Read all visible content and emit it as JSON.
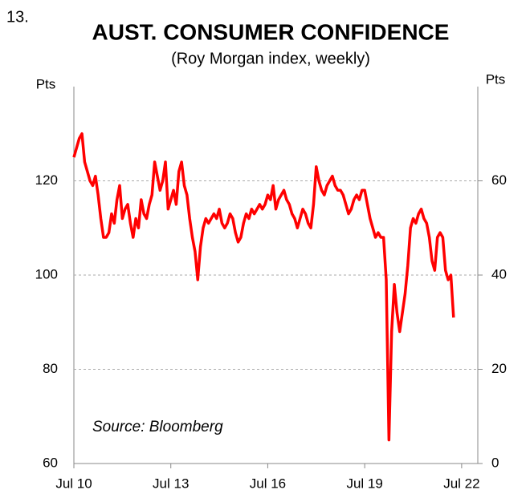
{
  "chart_data": {
    "type": "line",
    "figure_number": "13.",
    "title": "AUST. CONSUMER CONFIDENCE",
    "subtitle": "(Roy Morgan index, weekly)",
    "y_label": "Pts",
    "y2_label": "Pts",
    "annotation": "Source: Bloomberg",
    "color": "#ff0000",
    "grid": true,
    "xlim": [
      "2010-07",
      "2023-01"
    ],
    "xticks": [
      {
        "value": "2010-07",
        "label": "Jul 10"
      },
      {
        "value": "2013-07",
        "label": "Jul 13"
      },
      {
        "value": "2016-07",
        "label": "Jul 16"
      },
      {
        "value": "2019-07",
        "label": "Jul 19"
      },
      {
        "value": "2022-07",
        "label": "Jul 22"
      }
    ],
    "ylim": [
      60,
      140
    ],
    "yticks": [
      60,
      80,
      100,
      120
    ],
    "y2lim": [
      0,
      80
    ],
    "y2ticks": [
      0,
      20,
      40,
      60
    ],
    "x": [
      "2010-07",
      "2010-08",
      "2010-09",
      "2010-10",
      "2010-11",
      "2010-12",
      "2011-01",
      "2011-02",
      "2011-03",
      "2011-04",
      "2011-05",
      "2011-06",
      "2011-07",
      "2011-08",
      "2011-09",
      "2011-10",
      "2011-11",
      "2011-12",
      "2012-01",
      "2012-02",
      "2012-03",
      "2012-04",
      "2012-05",
      "2012-06",
      "2012-07",
      "2012-08",
      "2012-09",
      "2012-10",
      "2012-11",
      "2012-12",
      "2013-01",
      "2013-02",
      "2013-03",
      "2013-04",
      "2013-05",
      "2013-06",
      "2013-07",
      "2013-08",
      "2013-09",
      "2013-10",
      "2013-11",
      "2013-12",
      "2014-01",
      "2014-02",
      "2014-03",
      "2014-04",
      "2014-05",
      "2014-06",
      "2014-07",
      "2014-08",
      "2014-09",
      "2014-10",
      "2014-11",
      "2014-12",
      "2015-01",
      "2015-02",
      "2015-03",
      "2015-04",
      "2015-05",
      "2015-06",
      "2015-07",
      "2015-08",
      "2015-09",
      "2015-10",
      "2015-11",
      "2015-12",
      "2016-01",
      "2016-02",
      "2016-03",
      "2016-04",
      "2016-05",
      "2016-06",
      "2016-07",
      "2016-08",
      "2016-09",
      "2016-10",
      "2016-11",
      "2016-12",
      "2017-01",
      "2017-02",
      "2017-03",
      "2017-04",
      "2017-05",
      "2017-06",
      "2017-07",
      "2017-08",
      "2017-09",
      "2017-10",
      "2017-11",
      "2017-12",
      "2018-01",
      "2018-02",
      "2018-03",
      "2018-04",
      "2018-05",
      "2018-06",
      "2018-07",
      "2018-08",
      "2018-09",
      "2018-10",
      "2018-11",
      "2018-12",
      "2019-01",
      "2019-02",
      "2019-03",
      "2019-04",
      "2019-05",
      "2019-06",
      "2019-07",
      "2019-08",
      "2019-09",
      "2019-10",
      "2019-11",
      "2019-12",
      "2020-01",
      "2020-02",
      "2020-03",
      "2020-04",
      "2020-05",
      "2020-06",
      "2020-07",
      "2020-08",
      "2020-09",
      "2020-10",
      "2020-11",
      "2020-12",
      "2021-01",
      "2021-02",
      "2021-03",
      "2021-04",
      "2021-05",
      "2021-06",
      "2021-07",
      "2021-08",
      "2021-09",
      "2021-10",
      "2021-11",
      "2021-12",
      "2022-01",
      "2022-02",
      "2022-03",
      "2022-04"
    ],
    "values": [
      125,
      127,
      129,
      130,
      124,
      122,
      120,
      119,
      121,
      117,
      112,
      108,
      108,
      109,
      113,
      111,
      116,
      119,
      112,
      114,
      115,
      111,
      108,
      112,
      110,
      116,
      113,
      112,
      115,
      117,
      124,
      121,
      118,
      120,
      124,
      114,
      116,
      118,
      115,
      122,
      124,
      119,
      117,
      112,
      108,
      105,
      99,
      106,
      110,
      112,
      111,
      112,
      113,
      112,
      114,
      111,
      110,
      111,
      113,
      112,
      109,
      107,
      108,
      111,
      113,
      112,
      114,
      113,
      114,
      115,
      114,
      115,
      117,
      116,
      119,
      114,
      116,
      117,
      118,
      116,
      115,
      113,
      112,
      110,
      112,
      114,
      113,
      111,
      110,
      115,
      123,
      120,
      118,
      117,
      119,
      120,
      121,
      119,
      118,
      118,
      117,
      115,
      113,
      114,
      116,
      117,
      116,
      118,
      118,
      115,
      112,
      110,
      108,
      109,
      108,
      108,
      99,
      65,
      88,
      98,
      92,
      88,
      92,
      96,
      102,
      110,
      112,
      111,
      113,
      114,
      112,
      111,
      108,
      103,
      101,
      108,
      109,
      108,
      101,
      99,
      100,
      91
    ]
  }
}
